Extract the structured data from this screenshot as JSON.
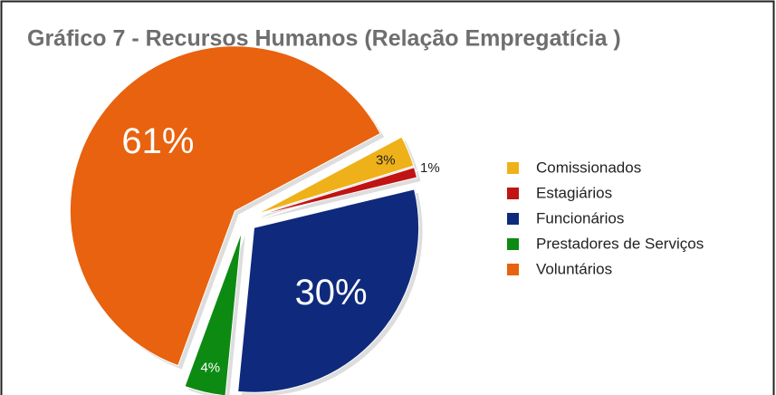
{
  "chart_data": {
    "type": "pie",
    "title": "Gráfico 7 - Recursos Humanos (Relação Empregatícia )",
    "categories": [
      "Comissionados",
      "Estagiários",
      "Funcionários",
      "Prestadores de Serviços",
      "Voluntários"
    ],
    "values": [
      3,
      1,
      30,
      4,
      61
    ],
    "value_labels": [
      "3%",
      "1%",
      "30%",
      "4%",
      "61%"
    ],
    "colors": [
      "#efb11a",
      "#c01414",
      "#0f2a7c",
      "#0d8a12",
      "#e8620f"
    ],
    "legend": "right"
  }
}
